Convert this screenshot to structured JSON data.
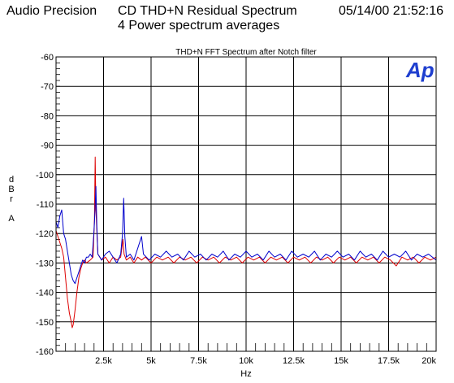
{
  "header": {
    "left": "Audio Precision",
    "title": "CD THD+N Residual Spectrum",
    "subtitle": "4 Power spectrum averages",
    "datetime": "05/14/00 21:52:16"
  },
  "logo": {
    "text": "Ap",
    "color": "#1f3fcf"
  },
  "chart_data": {
    "type": "line",
    "title": "THD+N FFT Spectrum after Notch filter",
    "xlabel": "Hz",
    "ylabel": [
      "d",
      "B",
      "r",
      "",
      "A"
    ],
    "xlim": [
      0,
      20000
    ],
    "ylim": [
      -160,
      -60
    ],
    "x_ticks": [
      2500,
      5000,
      7500,
      10000,
      12500,
      15000,
      17500,
      20000
    ],
    "x_tick_labels": [
      "2.5k",
      "5k",
      "7.5k",
      "10k",
      "12.5k",
      "15k",
      "17.5k",
      "20k"
    ],
    "y_ticks": [
      -60,
      -70,
      -80,
      -90,
      -100,
      -110,
      -120,
      -130,
      -140,
      -150,
      -160
    ],
    "y_tick_labels": [
      "-60",
      "-70",
      "-80",
      "-90",
      "-100",
      "-110",
      "-120",
      "-130",
      "-140",
      "-150",
      "-160"
    ],
    "grid": true,
    "series": [
      {
        "color": "#0000cc",
        "points": [
          [
            0,
            -116
          ],
          [
            100,
            -118
          ],
          [
            200,
            -114
          ],
          [
            300,
            -112
          ],
          [
            400,
            -120
          ],
          [
            500,
            -122
          ],
          [
            600,
            -126
          ],
          [
            700,
            -130
          ],
          [
            800,
            -134
          ],
          [
            900,
            -136
          ],
          [
            1000,
            -137
          ],
          [
            1100,
            -135
          ],
          [
            1200,
            -133
          ],
          [
            1300,
            -131
          ],
          [
            1400,
            -129
          ],
          [
            1500,
            -130
          ],
          [
            1600,
            -128
          ],
          [
            1700,
            -128
          ],
          [
            1800,
            -127
          ],
          [
            1900,
            -128
          ],
          [
            2000,
            -119
          ],
          [
            2050,
            -112
          ],
          [
            2100,
            -104
          ],
          [
            2150,
            -118
          ],
          [
            2200,
            -127
          ],
          [
            2400,
            -129
          ],
          [
            2600,
            -127
          ],
          [
            2800,
            -126
          ],
          [
            3000,
            -128
          ],
          [
            3200,
            -130
          ],
          [
            3400,
            -127
          ],
          [
            3500,
            -120
          ],
          [
            3560,
            -108
          ],
          [
            3620,
            -121
          ],
          [
            3700,
            -128
          ],
          [
            3900,
            -127
          ],
          [
            4100,
            -129
          ],
          [
            4300,
            -125
          ],
          [
            4500,
            -121
          ],
          [
            4600,
            -127
          ],
          [
            4900,
            -129
          ],
          [
            5200,
            -127
          ],
          [
            5500,
            -128
          ],
          [
            5800,
            -126
          ],
          [
            6100,
            -128
          ],
          [
            6400,
            -127
          ],
          [
            6700,
            -129
          ],
          [
            7000,
            -126
          ],
          [
            7300,
            -128
          ],
          [
            7600,
            -127
          ],
          [
            7900,
            -129
          ],
          [
            8200,
            -127
          ],
          [
            8500,
            -128
          ],
          [
            8800,
            -126
          ],
          [
            9100,
            -129
          ],
          [
            9400,
            -127
          ],
          [
            9700,
            -128
          ],
          [
            10000,
            -126
          ],
          [
            10300,
            -128
          ],
          [
            10600,
            -127
          ],
          [
            10900,
            -129
          ],
          [
            11200,
            -126
          ],
          [
            11500,
            -128
          ],
          [
            11800,
            -127
          ],
          [
            12100,
            -129
          ],
          [
            12400,
            -126
          ],
          [
            12700,
            -128
          ],
          [
            13000,
            -127
          ],
          [
            13300,
            -128
          ],
          [
            13600,
            -126
          ],
          [
            13900,
            -129
          ],
          [
            14200,
            -127
          ],
          [
            14500,
            -128
          ],
          [
            14800,
            -126
          ],
          [
            15100,
            -128
          ],
          [
            15400,
            -127
          ],
          [
            15700,
            -129
          ],
          [
            16000,
            -126
          ],
          [
            16300,
            -128
          ],
          [
            16600,
            -127
          ],
          [
            16900,
            -129
          ],
          [
            17200,
            -126
          ],
          [
            17500,
            -128
          ],
          [
            17800,
            -127
          ],
          [
            18100,
            -128
          ],
          [
            18400,
            -126
          ],
          [
            18700,
            -129
          ],
          [
            19000,
            -127
          ],
          [
            19300,
            -128
          ],
          [
            19600,
            -127
          ],
          [
            20000,
            -129
          ]
        ]
      },
      {
        "color": "#dd0000",
        "points": [
          [
            0,
            -119
          ],
          [
            100,
            -121
          ],
          [
            200,
            -123
          ],
          [
            300,
            -125
          ],
          [
            400,
            -128
          ],
          [
            500,
            -135
          ],
          [
            600,
            -142
          ],
          [
            700,
            -147
          ],
          [
            800,
            -150
          ],
          [
            850,
            -152
          ],
          [
            900,
            -151
          ],
          [
            1000,
            -146
          ],
          [
            1100,
            -140
          ],
          [
            1200,
            -135
          ],
          [
            1300,
            -132
          ],
          [
            1400,
            -130
          ],
          [
            1500,
            -129
          ],
          [
            1600,
            -130
          ],
          [
            1800,
            -129
          ],
          [
            1950,
            -128
          ],
          [
            2020,
            -115
          ],
          [
            2060,
            -94
          ],
          [
            2100,
            -112
          ],
          [
            2200,
            -127
          ],
          [
            2400,
            -129
          ],
          [
            2600,
            -128
          ],
          [
            2800,
            -130
          ],
          [
            3000,
            -128
          ],
          [
            3200,
            -129
          ],
          [
            3400,
            -128
          ],
          [
            3520,
            -122
          ],
          [
            3580,
            -127
          ],
          [
            3700,
            -129
          ],
          [
            3900,
            -128
          ],
          [
            4100,
            -130
          ],
          [
            4300,
            -128
          ],
          [
            4500,
            -129
          ],
          [
            4700,
            -128
          ],
          [
            5000,
            -130
          ],
          [
            5300,
            -128
          ],
          [
            5600,
            -129
          ],
          [
            5900,
            -128
          ],
          [
            6200,
            -130
          ],
          [
            6500,
            -128
          ],
          [
            6800,
            -129
          ],
          [
            7100,
            -128
          ],
          [
            7400,
            -130
          ],
          [
            7700,
            -128
          ],
          [
            8000,
            -129
          ],
          [
            8300,
            -128
          ],
          [
            8600,
            -130
          ],
          [
            8900,
            -128
          ],
          [
            9200,
            -129
          ],
          [
            9500,
            -128
          ],
          [
            9800,
            -130
          ],
          [
            10100,
            -128
          ],
          [
            10400,
            -129
          ],
          [
            10700,
            -128
          ],
          [
            11000,
            -130
          ],
          [
            11300,
            -128
          ],
          [
            11600,
            -129
          ],
          [
            11900,
            -128
          ],
          [
            12200,
            -130
          ],
          [
            12500,
            -128
          ],
          [
            12800,
            -129
          ],
          [
            13100,
            -128
          ],
          [
            13400,
            -130
          ],
          [
            13700,
            -128
          ],
          [
            14000,
            -129
          ],
          [
            14300,
            -128
          ],
          [
            14600,
            -130
          ],
          [
            14900,
            -128
          ],
          [
            15200,
            -129
          ],
          [
            15500,
            -128
          ],
          [
            15800,
            -130
          ],
          [
            16100,
            -128
          ],
          [
            16400,
            -129
          ],
          [
            16700,
            -128
          ],
          [
            17000,
            -130
          ],
          [
            17300,
            -128
          ],
          [
            17600,
            -129
          ],
          [
            17900,
            -131
          ],
          [
            18200,
            -128
          ],
          [
            18500,
            -129
          ],
          [
            18800,
            -128
          ],
          [
            19100,
            -130
          ],
          [
            19400,
            -128
          ],
          [
            19700,
            -129
          ],
          [
            20000,
            -128
          ]
        ]
      }
    ]
  }
}
